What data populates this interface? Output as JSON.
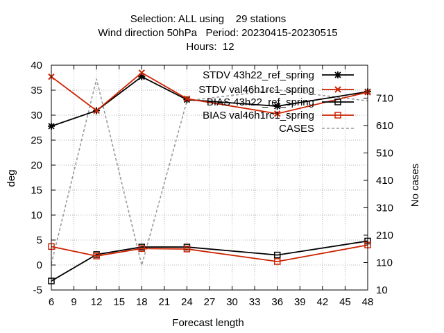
{
  "chart_data": {
    "type": "line",
    "title": "Selection: ALL using    29 stations",
    "title_line2": "Wind direction 50hPa   Period: 20230415-20230515",
    "title_line3": "Hours:  12",
    "xlabel": "Forecast length",
    "ylabel": "deg",
    "y2label": "No cases",
    "x": [
      6,
      12,
      18,
      24,
      36,
      48
    ],
    "xlim": [
      6,
      48
    ],
    "xticks": [
      6,
      9,
      12,
      15,
      18,
      21,
      24,
      27,
      30,
      33,
      36,
      39,
      42,
      45,
      48
    ],
    "ylim": [
      -5,
      40
    ],
    "yticks": [
      -5,
      0,
      5,
      10,
      15,
      20,
      25,
      30,
      35,
      40
    ],
    "y2lim": [
      10,
      830
    ],
    "y2ticks": [
      10,
      110,
      210,
      310,
      410,
      510,
      610,
      710
    ],
    "grid": true,
    "legend_position": "top-right",
    "series": [
      {
        "name": "STDV 43h22_ref_spring",
        "axis": "left",
        "marker": "star",
        "color": "#000000",
        "values": [
          27.8,
          30.9,
          37.7,
          33.1,
          31.8,
          34.7
        ]
      },
      {
        "name": "STDV val46h1rc1_spring",
        "axis": "left",
        "marker": "x",
        "color": "#cc2200",
        "values": [
          37.7,
          30.9,
          38.5,
          33.3,
          30.3,
          34.6
        ]
      },
      {
        "name": "BIAS 43h22_ref_spring",
        "axis": "left",
        "marker": "square",
        "color": "#000000",
        "values": [
          -3.2,
          2.1,
          3.6,
          3.6,
          2.0,
          4.8
        ]
      },
      {
        "name": "BIAS val46h1rc1_spring",
        "axis": "left",
        "marker": "square",
        "color": "#cc2200",
        "values": [
          3.7,
          1.8,
          3.3,
          3.2,
          0.7,
          4.0
        ]
      },
      {
        "name": "CASES",
        "axis": "right",
        "marker": "none",
        "color": "#999999",
        "dashed": true,
        "values": [
          105,
          780,
          100,
          700,
          740,
          700
        ]
      }
    ]
  }
}
